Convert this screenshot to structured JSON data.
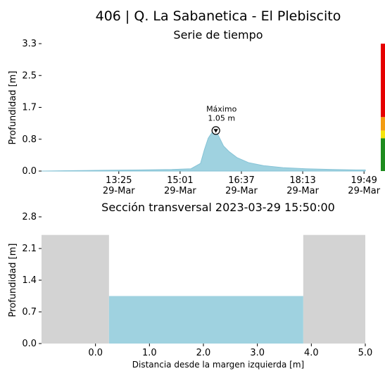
{
  "figure_title": "406 | Q. La Sabanetica - El Plebiscito",
  "colors": {
    "fill": "#9fd2e0",
    "line": "#86c3d6",
    "ground": "#d3d3d3",
    "level_red": "#e60000",
    "level_orange": "#f39c12",
    "level_yellow": "#f5e50a",
    "level_green": "#1e8c1e"
  },
  "chart_data": [
    {
      "type": "area",
      "title": "Serie de tiempo",
      "xlabel": "",
      "ylabel": "Profundidad [m]",
      "x_tick_labels": [
        [
          "13:25",
          "29-Mar"
        ],
        [
          "15:01",
          "29-Mar"
        ],
        [
          "16:37",
          "29-Mar"
        ],
        [
          "18:13",
          "29-Mar"
        ],
        [
          "19:49",
          "29-Mar"
        ]
      ],
      "x_ticks_hours": [
        13.4167,
        15.0167,
        16.6167,
        18.2167,
        19.8167
      ],
      "xlim_hours": [
        11.4,
        19.85
      ],
      "y_ticks": [
        "0.0",
        "0.8",
        "1.7",
        "2.5",
        "3.3"
      ],
      "ylim": [
        0,
        3.3
      ],
      "x_hours": [
        11.4,
        12.0,
        13.0,
        14.0,
        14.8,
        15.3,
        15.55,
        15.65,
        15.75,
        15.85,
        15.95,
        16.05,
        16.15,
        16.3,
        16.5,
        16.8,
        17.2,
        17.7,
        18.3,
        19.0,
        19.6,
        19.85
      ],
      "y": [
        0.0,
        0.01,
        0.02,
        0.03,
        0.04,
        0.06,
        0.2,
        0.55,
        0.85,
        1.0,
        1.05,
        0.85,
        0.65,
        0.5,
        0.35,
        0.22,
        0.14,
        0.09,
        0.06,
        0.04,
        0.03,
        0.03
      ],
      "annotation": {
        "label": "Máximo",
        "value": "1.05 m",
        "x_hours": 15.95,
        "y": 1.05
      },
      "level_scale": [
        {
          "color": "level_green",
          "from": 0.0,
          "to": 0.85
        },
        {
          "color": "level_yellow",
          "from": 0.85,
          "to": 1.05
        },
        {
          "color": "level_orange",
          "from": 1.05,
          "to": 1.4
        },
        {
          "color": "level_red",
          "from": 1.4,
          "to": 3.3
        }
      ]
    },
    {
      "type": "area",
      "title": "Sección transversal 2023-03-29 15:50:00",
      "xlabel": "Distancia desde la margen izquierda [m]",
      "ylabel": "Profundidad [m]",
      "xlim": [
        -1.0,
        5.0
      ],
      "ylim": [
        0,
        2.8
      ],
      "x_ticks": [
        0.0,
        1.0,
        2.0,
        3.0,
        4.0,
        5.0
      ],
      "x_tick_labels": [
        "0.0",
        "1.0",
        "2.0",
        "3.0",
        "4.0",
        "5.0"
      ],
      "y_ticks": [
        0.0,
        0.7,
        1.4,
        2.1,
        2.8
      ],
      "y_tick_labels": [
        "0.0",
        "0.7",
        "1.4",
        "2.1",
        "2.8"
      ],
      "ground": [
        {
          "x0": -1.0,
          "x1": 0.25,
          "y0": 0.0,
          "y1": 2.4
        },
        {
          "x0": 3.85,
          "x1": 5.0,
          "y0": 0.0,
          "y1": 2.4
        }
      ],
      "water": {
        "x0": 0.25,
        "x1": 3.85,
        "depth": 1.05
      }
    }
  ]
}
